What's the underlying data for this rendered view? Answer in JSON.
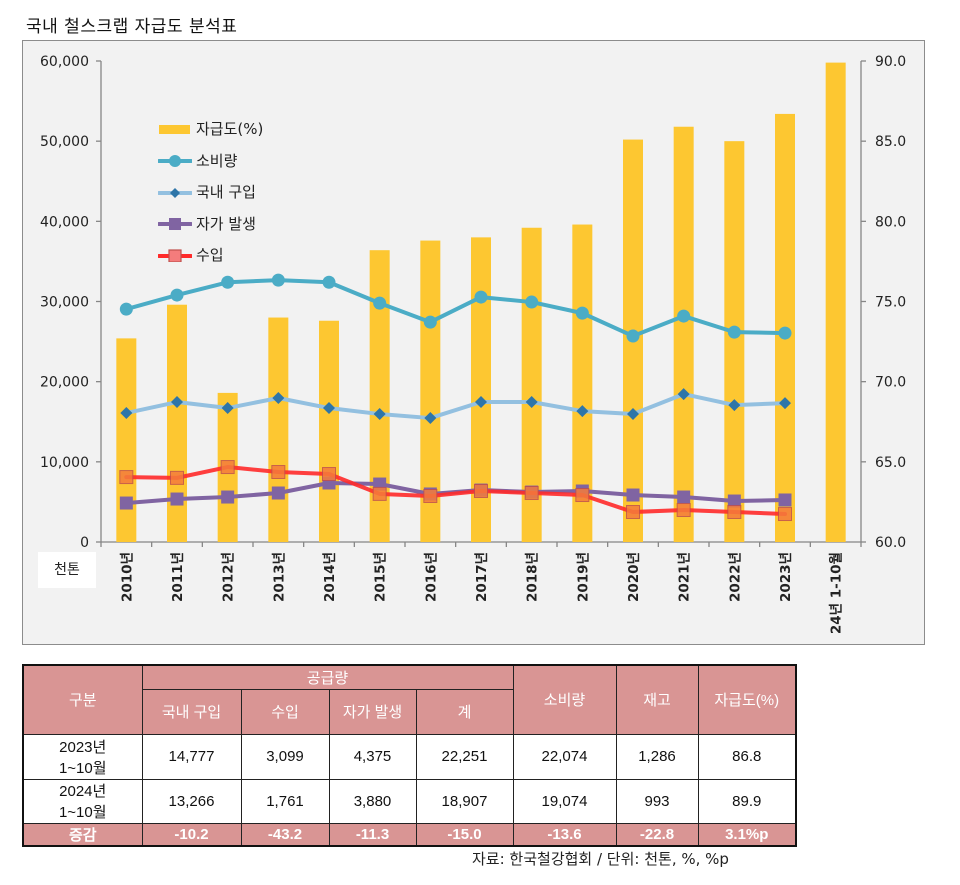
{
  "title": "국내 철스크랩 자급도 분석표",
  "unit_label": "천톤",
  "chart_data": {
    "type": "bar+line",
    "title": "국내 철스크랩 자급도 분석표",
    "categories": [
      "2010년",
      "2011년",
      "2012년",
      "2013년",
      "2014년",
      "2015년",
      "2016년",
      "2017년",
      "2018년",
      "2019년",
      "2020년",
      "2021년",
      "2022년",
      "2023년",
      "24년 1-10월"
    ],
    "y_left": {
      "label": "천톤",
      "range": [
        0,
        60000
      ],
      "ticks": [
        "0",
        "10,000",
        "20,000",
        "30,000",
        "40,000",
        "50,000",
        "60,000"
      ],
      "tick_values": [
        0,
        10000,
        20000,
        30000,
        40000,
        50000,
        60000
      ]
    },
    "y_right": {
      "label": "%",
      "range": [
        60.0,
        90.0
      ],
      "ticks": [
        "60.0",
        "65.0",
        "70.0",
        "75.0",
        "80.0",
        "85.0",
        "90.0"
      ],
      "tick_values": [
        60,
        65,
        70,
        75,
        80,
        85,
        90
      ]
    },
    "grid": false,
    "legend_position": "top-left",
    "series": [
      {
        "name": "자급도(%)",
        "type": "bar",
        "axis": "right",
        "color": "#fdc731",
        "values": [
          72.7,
          74.8,
          69.3,
          74.0,
          73.8,
          78.2,
          78.8,
          79.0,
          79.6,
          79.8,
          85.1,
          85.9,
          85.0,
          86.7,
          89.9
        ]
      },
      {
        "name": "소비량",
        "type": "line",
        "axis": "left",
        "color": "#4bacc6",
        "marker": "circle",
        "values": [
          29050,
          30800,
          32400,
          32670,
          32400,
          29800,
          27430,
          30550,
          29930,
          28550,
          25690,
          28180,
          26180,
          26060,
          null
        ]
      },
      {
        "name": "국내 구입",
        "type": "line",
        "axis": "left",
        "color": "#93c0e0",
        "marker_color": "#2e75a8",
        "marker": "diamond",
        "values": [
          16090,
          17460,
          16710,
          17960,
          16710,
          15960,
          15460,
          17460,
          17460,
          16330,
          15960,
          18450,
          17080,
          17330,
          null
        ]
      },
      {
        "name": "자가 발생",
        "type": "line",
        "axis": "left",
        "color": "#8064a2",
        "marker": "square",
        "values": [
          4860,
          5360,
          5610,
          6110,
          7360,
          7230,
          5990,
          6480,
          6230,
          6360,
          5860,
          5610,
          5110,
          5240,
          null
        ]
      },
      {
        "name": "수입",
        "type": "line",
        "axis": "left",
        "color": "#ff2a2a",
        "marker_color": "#f47c3c",
        "marker": "square",
        "values": [
          8100,
          8000,
          9350,
          8730,
          8480,
          6000,
          5740,
          6360,
          6110,
          5860,
          3740,
          3990,
          3740,
          3490,
          null
        ]
      }
    ]
  },
  "table": {
    "header": {
      "category": "구분",
      "supply_group": "공급량",
      "supply_columns": [
        "국내 구입",
        "수입",
        "자가 발생",
        "계"
      ],
      "consumption": "소비량",
      "inventory": "재고",
      "self_sufficiency": "자급도(%)"
    },
    "rows": [
      {
        "period_line1": "2023년",
        "period_line2": "1~10월",
        "values": [
          "14,777",
          "3,099",
          "4,375",
          "22,251",
          "22,074",
          "1,286",
          "86.8"
        ]
      },
      {
        "period_line1": "2024년",
        "period_line2": "1~10월",
        "values": [
          "13,266",
          "1,761",
          "3,880",
          "18,907",
          "19,074",
          "993",
          "89.9"
        ]
      }
    ],
    "change_row": {
      "label": "증감",
      "values": [
        "-10.2",
        "-43.2",
        "-11.3",
        "-15.0",
        "-13.6",
        "-22.8",
        "3.1%p"
      ]
    }
  },
  "source": "자료: 한국철강협회 / 단위: 천톤, %, %p"
}
